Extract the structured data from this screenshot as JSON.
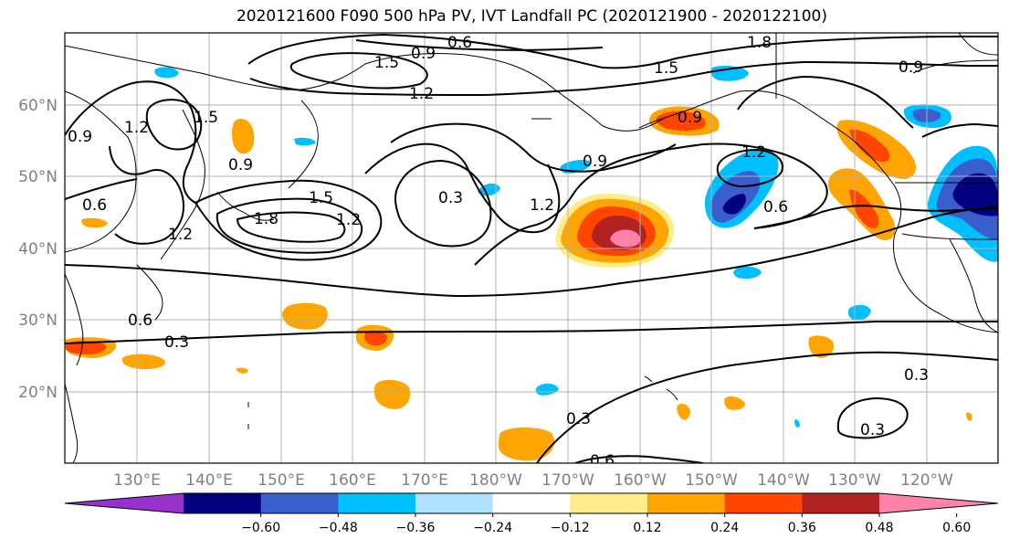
{
  "title": "2020121600 F090 500 hPa PV, IVT Landfall PC (2020121900 - 2020122100)",
  "lat_ticks": [
    "60°N",
    "50°N",
    "40°N",
    "30°N",
    "20°N"
  ],
  "lon_ticks": [
    "130°E",
    "140°E",
    "150°E",
    "160°E",
    "170°E",
    "180°W",
    "170°W",
    "160°W",
    "150°W",
    "140°W",
    "130°W",
    "120°W"
  ],
  "contour_levels": [
    "0.3",
    "0.6",
    "0.9",
    "1.2",
    "1.5",
    "1.8"
  ],
  "colorbar": {
    "colors": [
      "#9932cc",
      "#000080",
      "#3a5fcd",
      "#00bfff",
      "#b0e2ff",
      "#ffffff",
      "#ffec8b",
      "#ffa500",
      "#ff4500",
      "#b22222",
      "#ff82ab"
    ],
    "tick_labels": [
      "−0.60",
      "−0.48",
      "−0.36",
      "−0.24",
      "−0.12",
      "0.12",
      "0.24",
      "0.36",
      "0.48",
      "0.60"
    ]
  },
  "contour_labels": [
    {
      "text": "0.6"
    },
    {
      "text": "1.8"
    },
    {
      "text": "0.9"
    },
    {
      "text": "1.5"
    },
    {
      "text": "1.5"
    },
    {
      "text": "0.9"
    },
    {
      "text": "1.2"
    },
    {
      "text": "1.2"
    },
    {
      "text": "1.5"
    },
    {
      "text": "0.9"
    },
    {
      "text": "0.9"
    },
    {
      "text": "0.6"
    },
    {
      "text": "1.2"
    },
    {
      "text": "0.9"
    },
    {
      "text": "1.8"
    },
    {
      "text": "1.5"
    },
    {
      "text": "1.2"
    },
    {
      "text": "1.2"
    },
    {
      "text": "0.3"
    },
    {
      "text": "1.2"
    },
    {
      "text": "0.6"
    },
    {
      "text": "0.6"
    },
    {
      "text": "0.3"
    },
    {
      "text": "0.3"
    },
    {
      "text": "0.3"
    },
    {
      "text": "0.3"
    },
    {
      "text": "0.6"
    },
    {
      "text": "0.9"
    }
  ]
}
